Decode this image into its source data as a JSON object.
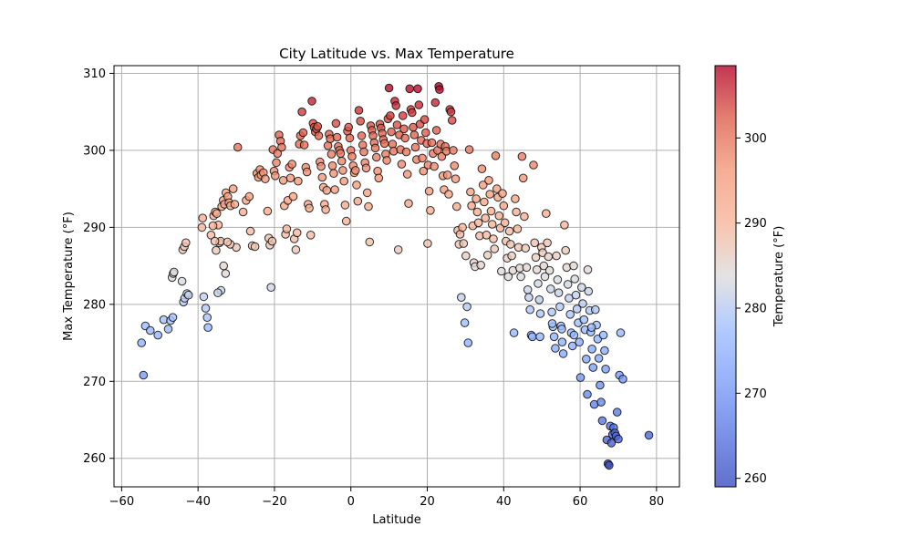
{
  "chart_data": {
    "type": "scatter",
    "title": "City Latitude vs. Max Temperature",
    "xlabel": "Latitude",
    "ylabel": "Max Temperature (°F)",
    "xlim": [
      -62,
      86
    ],
    "ylim": [
      256.3,
      311
    ],
    "xticks": [
      -60,
      -40,
      -20,
      0,
      20,
      40,
      60,
      80
    ],
    "yticks": [
      260,
      270,
      280,
      290,
      300,
      310
    ],
    "grid": true,
    "colormap": "coolwarm",
    "point_alpha": 0.8,
    "point_edge_color": "#000000",
    "colorbar": {
      "label": "Temperature (°F)",
      "range": [
        259,
        308.5
      ],
      "ticks": [
        260,
        270,
        280,
        290,
        300
      ]
    },
    "points": [
      [
        -54.8,
        275.0
      ],
      [
        -54.3,
        270.8
      ],
      [
        -53.8,
        277.2
      ],
      [
        -52.5,
        276.6
      ],
      [
        -50.5,
        276.0
      ],
      [
        -49.0,
        278.0
      ],
      [
        -47.8,
        276.8
      ],
      [
        -47.2,
        277.9
      ],
      [
        -46.6,
        278.3
      ],
      [
        -46.8,
        283.5
      ],
      [
        -46.5,
        284.0
      ],
      [
        -46.3,
        284.2
      ],
      [
        -44.2,
        283.0
      ],
      [
        -43.8,
        280.3
      ],
      [
        -43.5,
        280.8
      ],
      [
        -42.9,
        281.4
      ],
      [
        -42.5,
        281.2
      ],
      [
        -44.0,
        287.1
      ],
      [
        -43.6,
        287.5
      ],
      [
        -43.2,
        288.0
      ],
      [
        -38.5,
        281.0
      ],
      [
        -38.0,
        279.5
      ],
      [
        -37.6,
        278.3
      ],
      [
        -37.4,
        277.0
      ],
      [
        -39.0,
        290.0
      ],
      [
        -38.8,
        291.2
      ],
      [
        -36.6,
        289.0
      ],
      [
        -35.9,
        291.5
      ],
      [
        -35.5,
        292.0
      ],
      [
        -35.1,
        291.8
      ],
      [
        -34.7,
        290.3
      ],
      [
        -34.4,
        288.0
      ],
      [
        -34.1,
        288.2
      ],
      [
        -33.8,
        292.7
      ],
      [
        -33.4,
        293.5
      ],
      [
        -33.1,
        293.0
      ],
      [
        -32.7,
        294.5
      ],
      [
        -32.2,
        294.0
      ],
      [
        -31.9,
        293.2
      ],
      [
        -31.5,
        292.8
      ],
      [
        -30.8,
        295.0
      ],
      [
        -30.4,
        293.0
      ],
      [
        -30.0,
        287.4
      ],
      [
        -31.6,
        287.8
      ],
      [
        -32.3,
        288.1
      ],
      [
        -32.8,
        284.0
      ],
      [
        -33.3,
        285.0
      ],
      [
        -34.0,
        281.8
      ],
      [
        -34.8,
        281.5
      ],
      [
        -35.3,
        287.0
      ],
      [
        -35.6,
        288.2
      ],
      [
        -36.1,
        290.2
      ],
      [
        -29.6,
        300.4
      ],
      [
        -28.2,
        292.0
      ],
      [
        -27.4,
        293.5
      ],
      [
        -26.6,
        294.0
      ],
      [
        -26.3,
        289.5
      ],
      [
        -25.8,
        287.6
      ],
      [
        -25.1,
        287.5
      ],
      [
        -24.6,
        297.0
      ],
      [
        -24.2,
        296.5
      ],
      [
        -23.8,
        297.5
      ],
      [
        -23.5,
        296.8
      ],
      [
        -22.9,
        297.1
      ],
      [
        -22.4,
        296.3
      ],
      [
        -21.8,
        292.1
      ],
      [
        -21.5,
        288.6
      ],
      [
        -21.2,
        287.7
      ],
      [
        -20.9,
        282.2
      ],
      [
        -20.6,
        288.2
      ],
      [
        -20.4,
        300.1
      ],
      [
        -20.1,
        297.3
      ],
      [
        -19.8,
        296.7
      ],
      [
        -19.5,
        298.4
      ],
      [
        -19.2,
        299.6
      ],
      [
        -18.8,
        302.0
      ],
      [
        -18.4,
        301.2
      ],
      [
        -18.1,
        300.4
      ],
      [
        -17.7,
        296.1
      ],
      [
        -17.4,
        292.8
      ],
      [
        -17.1,
        289.1
      ],
      [
        -16.8,
        289.8
      ],
      [
        -16.5,
        293.5
      ],
      [
        -16.1,
        297.8
      ],
      [
        -15.8,
        296.4
      ],
      [
        -15.4,
        298.2
      ],
      [
        -15.1,
        294.0
      ],
      [
        -14.8,
        288.5
      ],
      [
        -14.4,
        287.1
      ],
      [
        -14.1,
        289.3
      ],
      [
        -13.8,
        296.0
      ],
      [
        -13.5,
        300.8
      ],
      [
        -13.2,
        301.9
      ],
      [
        -12.8,
        305.0
      ],
      [
        -12.5,
        302.3
      ],
      [
        -12.2,
        300.7
      ],
      [
        -11.8,
        297.8
      ],
      [
        -11.5,
        297.2
      ],
      [
        -11.2,
        293.0
      ],
      [
        -10.9,
        292.5
      ],
      [
        -10.5,
        289.0
      ],
      [
        -10.2,
        306.4
      ],
      [
        -9.9,
        303.5
      ],
      [
        -9.6,
        303.0
      ],
      [
        -9.3,
        302.4
      ],
      [
        -9.0,
        302.8
      ],
      [
        -8.7,
        303.1
      ],
      [
        -8.4,
        301.9
      ],
      [
        -8.1,
        298.5
      ],
      [
        -7.8,
        297.9
      ],
      [
        -7.5,
        296.5
      ],
      [
        -7.2,
        295.2
      ],
      [
        -6.9,
        293.0
      ],
      [
        -6.6,
        292.3
      ],
      [
        -6.3,
        294.8
      ],
      [
        -6.0,
        300.6
      ],
      [
        -5.7,
        302.1
      ],
      [
        -5.4,
        301.5
      ],
      [
        -5.1,
        299.5
      ],
      [
        -4.8,
        298.0
      ],
      [
        -4.5,
        297.0
      ],
      [
        -4.2,
        294.9
      ],
      [
        -3.9,
        303.5
      ],
      [
        -3.6,
        301.7
      ],
      [
        -3.3,
        300.5
      ],
      [
        -3.0,
        300.0
      ],
      [
        -2.7,
        299.6
      ],
      [
        -2.4,
        298.6
      ],
      [
        -2.1,
        297.4
      ],
      [
        -1.8,
        296.0
      ],
      [
        -1.5,
        292.9
      ],
      [
        -1.2,
        290.8
      ],
      [
        -0.9,
        302.5
      ],
      [
        -0.6,
        303.0
      ],
      [
        -0.3,
        301.6
      ],
      [
        0.0,
        300.0
      ],
      [
        0.3,
        299.2
      ],
      [
        0.6,
        298.0
      ],
      [
        0.9,
        297.1
      ],
      [
        1.2,
        297.4
      ],
      [
        1.5,
        295.5
      ],
      [
        1.8,
        293.4
      ],
      [
        2.1,
        305.2
      ],
      [
        2.5,
        303.8
      ],
      [
        2.8,
        301.9
      ],
      [
        3.1,
        300.7
      ],
      [
        3.4,
        299.8
      ],
      [
        3.7,
        298.4
      ],
      [
        4.0,
        297.7
      ],
      [
        4.3,
        294.5
      ],
      [
        4.6,
        292.7
      ],
      [
        4.9,
        288.1
      ],
      [
        5.2,
        303.2
      ],
      [
        5.5,
        302.6
      ],
      [
        5.8,
        301.9
      ],
      [
        6.1,
        301.0
      ],
      [
        6.4,
        300.3
      ],
      [
        6.7,
        299.1
      ],
      [
        7.0,
        297.3
      ],
      [
        7.3,
        296.4
      ],
      [
        7.6,
        303.4
      ],
      [
        7.9,
        302.9
      ],
      [
        8.2,
        302.2
      ],
      [
        8.5,
        301.4
      ],
      [
        8.8,
        300.9
      ],
      [
        9.1,
        299.5
      ],
      [
        9.4,
        298.7
      ],
      [
        9.7,
        304.1
      ],
      [
        10.0,
        308.1
      ],
      [
        10.3,
        304.5
      ],
      [
        10.6,
        302.4
      ],
      [
        10.9,
        300.8
      ],
      [
        11.2,
        299.9
      ],
      [
        11.5,
        306.4
      ],
      [
        11.8,
        305.8
      ],
      [
        12.1,
        303.3
      ],
      [
        12.4,
        287.1
      ],
      [
        12.7,
        302.0
      ],
      [
        13.0,
        300.1
      ],
      [
        13.3,
        298.2
      ],
      [
        13.6,
        304.5
      ],
      [
        13.9,
        302.8
      ],
      [
        14.2,
        301.6
      ],
      [
        14.5,
        299.8
      ],
      [
        14.8,
        296.9
      ],
      [
        15.1,
        293.1
      ],
      [
        15.4,
        308.0
      ],
      [
        15.7,
        305.3
      ],
      [
        16.0,
        304.9
      ],
      [
        16.3,
        303.0
      ],
      [
        16.6,
        302.0
      ],
      [
        16.9,
        300.4
      ],
      [
        17.2,
        298.8
      ],
      [
        17.5,
        308.0
      ],
      [
        17.8,
        305.9
      ],
      [
        18.1,
        303.4
      ],
      [
        18.4,
        301.3
      ],
      [
        18.7,
        299.0
      ],
      [
        19.0,
        297.3
      ],
      [
        19.3,
        304.0
      ],
      [
        19.6,
        302.3
      ],
      [
        19.9,
        300.9
      ],
      [
        20.2,
        298.1
      ],
      [
        20.5,
        294.7
      ],
      [
        20.8,
        292.2
      ],
      [
        20.1,
        287.9
      ],
      [
        21.2,
        301.0
      ],
      [
        21.5,
        299.6
      ],
      [
        21.8,
        297.9
      ],
      [
        22.1,
        306.2
      ],
      [
        22.4,
        302.6
      ],
      [
        22.7,
        300.0
      ],
      [
        23.0,
        308.3
      ],
      [
        23.2,
        307.9
      ],
      [
        23.5,
        300.8
      ],
      [
        23.8,
        299.2
      ],
      [
        24.1,
        296.7
      ],
      [
        24.4,
        294.9
      ],
      [
        24.7,
        300.5
      ],
      [
        25.0,
        299.9
      ],
      [
        25.3,
        296.8
      ],
      [
        25.6,
        294.3
      ],
      [
        25.9,
        305.3
      ],
      [
        26.2,
        305.0
      ],
      [
        26.5,
        303.9
      ],
      [
        26.8,
        300.0
      ],
      [
        27.1,
        298.0
      ],
      [
        27.4,
        296.3
      ],
      [
        27.7,
        292.7
      ],
      [
        28.0,
        289.6
      ],
      [
        28.3,
        287.8
      ],
      [
        28.6,
        289.1
      ],
      [
        28.9,
        280.9
      ],
      [
        29.2,
        290.0
      ],
      [
        29.5,
        287.9
      ],
      [
        29.8,
        277.6
      ],
      [
        30.1,
        286.3
      ],
      [
        30.4,
        279.7
      ],
      [
        30.7,
        275.0
      ],
      [
        31.0,
        300.1
      ],
      [
        31.3,
        294.6
      ],
      [
        31.6,
        292.8
      ],
      [
        31.9,
        290.2
      ],
      [
        32.2,
        285.4
      ],
      [
        32.5,
        284.9
      ],
      [
        32.8,
        293.7
      ],
      [
        33.1,
        292.0
      ],
      [
        33.4,
        290.6
      ],
      [
        33.7,
        288.9
      ],
      [
        34.0,
        285.1
      ],
      [
        34.3,
        297.6
      ],
      [
        34.6,
        295.5
      ],
      [
        34.9,
        293.3
      ],
      [
        35.2,
        291.2
      ],
      [
        35.5,
        289.0
      ],
      [
        35.8,
        286.4
      ],
      [
        36.1,
        296.1
      ],
      [
        36.4,
        294.3
      ],
      [
        36.7,
        292.1
      ],
      [
        37.0,
        290.4
      ],
      [
        37.3,
        288.5
      ],
      [
        37.6,
        287.2
      ],
      [
        37.9,
        299.3
      ],
      [
        38.2,
        295.0
      ],
      [
        38.5,
        293.9
      ],
      [
        38.8,
        291.5
      ],
      [
        39.1,
        289.9
      ],
      [
        39.4,
        284.3
      ],
      [
        39.7,
        294.4
      ],
      [
        40.0,
        292.8
      ],
      [
        40.3,
        290.6
      ],
      [
        40.6,
        288.2
      ],
      [
        40.9,
        286.0
      ],
      [
        41.2,
        283.6
      ],
      [
        41.5,
        289.5
      ],
      [
        41.8,
        287.8
      ],
      [
        42.1,
        286.3
      ],
      [
        42.4,
        284.4
      ],
      [
        42.7,
        276.3
      ],
      [
        43.0,
        293.7
      ],
      [
        43.3,
        292.0
      ],
      [
        43.6,
        289.8
      ],
      [
        43.9,
        287.4
      ],
      [
        44.2,
        284.7
      ],
      [
        44.5,
        283.6
      ],
      [
        44.8,
        299.2
      ],
      [
        45.1,
        296.4
      ],
      [
        45.4,
        291.4
      ],
      [
        45.7,
        287.3
      ],
      [
        46.0,
        284.8
      ],
      [
        46.3,
        281.9
      ],
      [
        46.6,
        280.9
      ],
      [
        46.9,
        279.3
      ],
      [
        47.2,
        276.0
      ],
      [
        47.5,
        275.8
      ],
      [
        47.8,
        298.1
      ],
      [
        48.1,
        288.0
      ],
      [
        48.4,
        286.1
      ],
      [
        48.7,
        284.5
      ],
      [
        49.0,
        282.7
      ],
      [
        49.3,
        280.6
      ],
      [
        49.6,
        278.8
      ],
      [
        49.9,
        287.4
      ],
      [
        50.2,
        286.7
      ],
      [
        50.5,
        285.0
      ],
      [
        50.8,
        283.6
      ],
      [
        51.1,
        291.8
      ],
      [
        51.4,
        288.0
      ],
      [
        51.7,
        286.2
      ],
      [
        52.0,
        284.4
      ],
      [
        52.3,
        282.0
      ],
      [
        52.6,
        279.0
      ],
      [
        52.9,
        277.1
      ],
      [
        53.2,
        275.8
      ],
      [
        53.5,
        274.3
      ],
      [
        53.8,
        286.3
      ],
      [
        54.1,
        283.2
      ],
      [
        54.4,
        281.5
      ],
      [
        54.7,
        279.7
      ],
      [
        55.0,
        277.2
      ],
      [
        55.3,
        275.1
      ],
      [
        55.6,
        273.6
      ],
      [
        55.9,
        290.3
      ],
      [
        56.2,
        287.0
      ],
      [
        56.5,
        284.8
      ],
      [
        56.8,
        282.6
      ],
      [
        57.1,
        280.8
      ],
      [
        57.4,
        278.7
      ],
      [
        57.7,
        276.3
      ],
      [
        58.0,
        274.6
      ],
      [
        58.3,
        285.0
      ],
      [
        58.6,
        283.3
      ],
      [
        58.9,
        281.2
      ],
      [
        59.2,
        279.4
      ],
      [
        59.5,
        277.6
      ],
      [
        59.8,
        275.1
      ],
      [
        60.1,
        270.5
      ],
      [
        60.4,
        282.2
      ],
      [
        60.7,
        280.1
      ],
      [
        61.0,
        278.0
      ],
      [
        61.3,
        276.7
      ],
      [
        61.6,
        272.9
      ],
      [
        61.9,
        268.3
      ],
      [
        62.2,
        281.7
      ],
      [
        62.5,
        279.2
      ],
      [
        62.8,
        276.4
      ],
      [
        63.1,
        274.2
      ],
      [
        63.4,
        271.8
      ],
      [
        63.7,
        267.0
      ],
      [
        64.0,
        279.3
      ],
      [
        64.3,
        277.3
      ],
      [
        64.6,
        275.5
      ],
      [
        64.9,
        273.0
      ],
      [
        65.2,
        269.5
      ],
      [
        65.5,
        267.3
      ],
      [
        65.8,
        264.9
      ],
      [
        66.1,
        276.0
      ],
      [
        66.4,
        274.0
      ],
      [
        66.7,
        271.6
      ],
      [
        67.0,
        262.4
      ],
      [
        67.3,
        259.3
      ],
      [
        67.6,
        259.1
      ],
      [
        67.9,
        264.2
      ],
      [
        68.2,
        262.0
      ],
      [
        68.5,
        263.1
      ],
      [
        68.8,
        264.0
      ],
      [
        69.1,
        263.3
      ],
      [
        69.4,
        262.9
      ],
      [
        69.7,
        266.0
      ],
      [
        70.0,
        262.5
      ],
      [
        70.3,
        270.8
      ],
      [
        70.6,
        276.3
      ],
      [
        71.2,
        270.3
      ],
      [
        78.0,
        263.0
      ],
      [
        62.0,
        284.5
      ],
      [
        63.0,
        277.0
      ],
      [
        58.4,
        276.0
      ],
      [
        55.2,
        276.8
      ],
      [
        52.7,
        277.5
      ],
      [
        49.5,
        275.8
      ]
    ]
  }
}
